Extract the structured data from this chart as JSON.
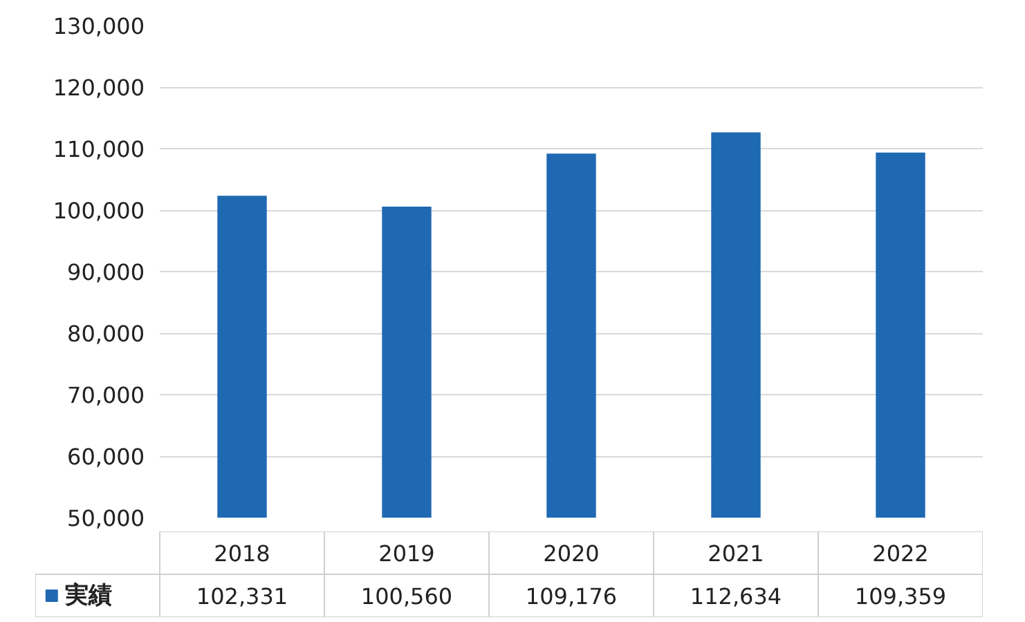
{
  "chart_data": {
    "type": "bar",
    "categories": [
      "2018",
      "2019",
      "2020",
      "2021",
      "2022"
    ],
    "series": [
      {
        "name": "実績",
        "color": "#1f69b3",
        "values": [
          102331,
          100560,
          109176,
          112634,
          109359
        ],
        "value_labels": [
          "102,331",
          "100,560",
          "109,176",
          "112,634",
          "109,359"
        ]
      }
    ],
    "ylim": [
      50000,
      130000
    ],
    "yticks": [
      {
        "value": 50000,
        "label": "50,000"
      },
      {
        "value": 60000,
        "label": "60,000"
      },
      {
        "value": 70000,
        "label": "70,000"
      },
      {
        "value": 80000,
        "label": "80,000"
      },
      {
        "value": 90000,
        "label": "90,000"
      },
      {
        "value": 100000,
        "label": "100,000"
      },
      {
        "value": 110000,
        "label": "110,000"
      },
      {
        "value": 120000,
        "label": "120,000"
      },
      {
        "value": 130000,
        "label": "130,000"
      }
    ],
    "grid": "y",
    "legend": "bottom",
    "data_labels": true
  }
}
